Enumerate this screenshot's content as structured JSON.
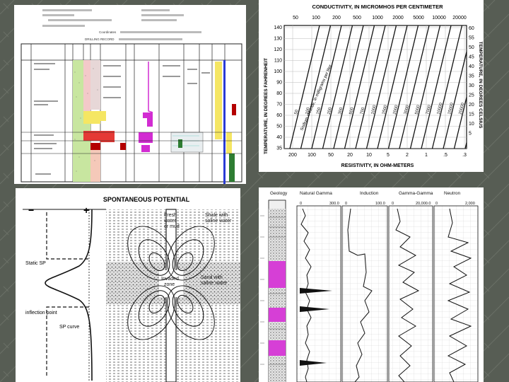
{
  "slide": {
    "background": "#575d54"
  },
  "log_panel": {
    "header_lines": [
      "Coordinates",
      "DRILLING RECORD"
    ],
    "colors": [
      "#e53935",
      "#f5e663",
      "#c8e6a0",
      "#d22cd2",
      "#2a3bd6",
      "#b40000",
      "#2e7d32",
      "#7fd2c8"
    ]
  },
  "conductivity_chart": {
    "title": "CONDUCTIVITY, IN MICROMHOS PER CENTIMETER",
    "top_ticks": [
      "50",
      "100",
      "200",
      "500",
      "1000",
      "2000",
      "5000",
      "10000",
      "20000"
    ],
    "left_label": "TEMPERATURE, IN DEGREES FAHRENHEIT",
    "left_ticks": [
      "140",
      "130",
      "120",
      "110",
      "100",
      "90",
      "80",
      "70",
      "60",
      "50",
      "40",
      "35"
    ],
    "right_label": "TEMPERATURE, IN DEGREES CELSIUS",
    "right_ticks": [
      "60",
      "55",
      "50",
      "45",
      "40",
      "35",
      "30",
      "25",
      "20",
      "15",
      "10",
      "5"
    ],
    "bottom_label": "RESISTIVITY, IN OHM-METERS",
    "bottom_ticks": [
      "200",
      "100",
      "50",
      "20",
      "10",
      "5",
      "2",
      "1",
      ".5",
      ".3"
    ],
    "diagonal_note": "Sodium chloride, in milligrams per liter",
    "line_labels": [
      "50",
      "100",
      "150",
      "200",
      "300",
      "500",
      "700",
      "1000",
      "1500",
      "2000",
      "3000",
      "5000",
      "7000",
      "10000",
      "15000",
      "20000"
    ]
  },
  "sp_diagram": {
    "title": "SPONTANEOUS POTENTIAL",
    "minus": "−",
    "plus": "+",
    "label_static": "Static SP",
    "label_inflection": "inflection point",
    "label_curve": "SP curve",
    "label_fresh": [
      "Fresh",
      "water",
      "or mud"
    ],
    "label_shale": [
      "Shale with",
      "saline water"
    ],
    "label_invaded": [
      "Invaded",
      "zone"
    ],
    "label_sand": [
      "Sand with",
      "saline water"
    ]
  },
  "geophysical_log": {
    "columns": [
      "Geology",
      "Natural Gamma",
      "Induction",
      "Gamma-Gamma",
      "Neutron"
    ],
    "scales": [
      [
        "0",
        "300.0"
      ],
      [
        "0",
        "100.0"
      ],
      [
        "0",
        "20,000.0"
      ],
      [
        "0",
        "2,000"
      ]
    ]
  }
}
